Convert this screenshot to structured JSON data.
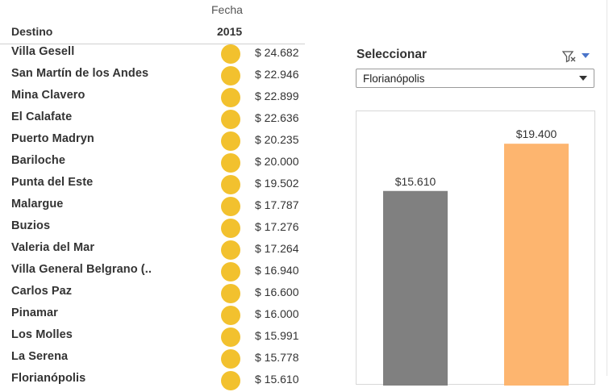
{
  "table": {
    "column_group_label": "Fecha",
    "year_label": "2015",
    "row_header_label": "Destino",
    "dot_color": "#f2c12e",
    "rows": [
      {
        "destino": "Villa Gesell",
        "value": "$ 24.682"
      },
      {
        "destino": "San Martín de los Andes",
        "value": "$ 22.946"
      },
      {
        "destino": "Mina Clavero",
        "value": "$ 22.899"
      },
      {
        "destino": "El Calafate",
        "value": "$ 22.636"
      },
      {
        "destino": "Puerto Madryn",
        "value": "$ 20.235"
      },
      {
        "destino": "Bariloche",
        "value": "$ 20.000"
      },
      {
        "destino": "Punta del Este",
        "value": "$ 19.502"
      },
      {
        "destino": "Malargue",
        "value": "$ 17.787"
      },
      {
        "destino": "Buzios",
        "value": "$ 17.276"
      },
      {
        "destino": "Valeria del Mar",
        "value": "$ 17.264"
      },
      {
        "destino": "Villa General Belgrano (..",
        "value": "$ 16.940"
      },
      {
        "destino": "Carlos Paz",
        "value": "$ 16.600"
      },
      {
        "destino": "Pinamar",
        "value": "$ 16.000"
      },
      {
        "destino": "Los Molles",
        "value": "$ 15.991"
      },
      {
        "destino": "La Serena",
        "value": "$ 15.778"
      },
      {
        "destino": "Florianópolis",
        "value": "$ 15.610"
      }
    ]
  },
  "filter": {
    "label": "Seleccionar",
    "selected": "Florianópolis",
    "icons": [
      "filter-clear-icon",
      "dropdown-menu-icon"
    ]
  },
  "chart_data": {
    "type": "bar",
    "categories": [
      "",
      ""
    ],
    "values": [
      15610,
      19400
    ],
    "data_labels": [
      "$15.610",
      "$19.400"
    ],
    "colors": [
      "#808080",
      "#fdb56f"
    ],
    "ylim": [
      0,
      22000
    ],
    "title": "",
    "xlabel": "",
    "ylabel": ""
  }
}
